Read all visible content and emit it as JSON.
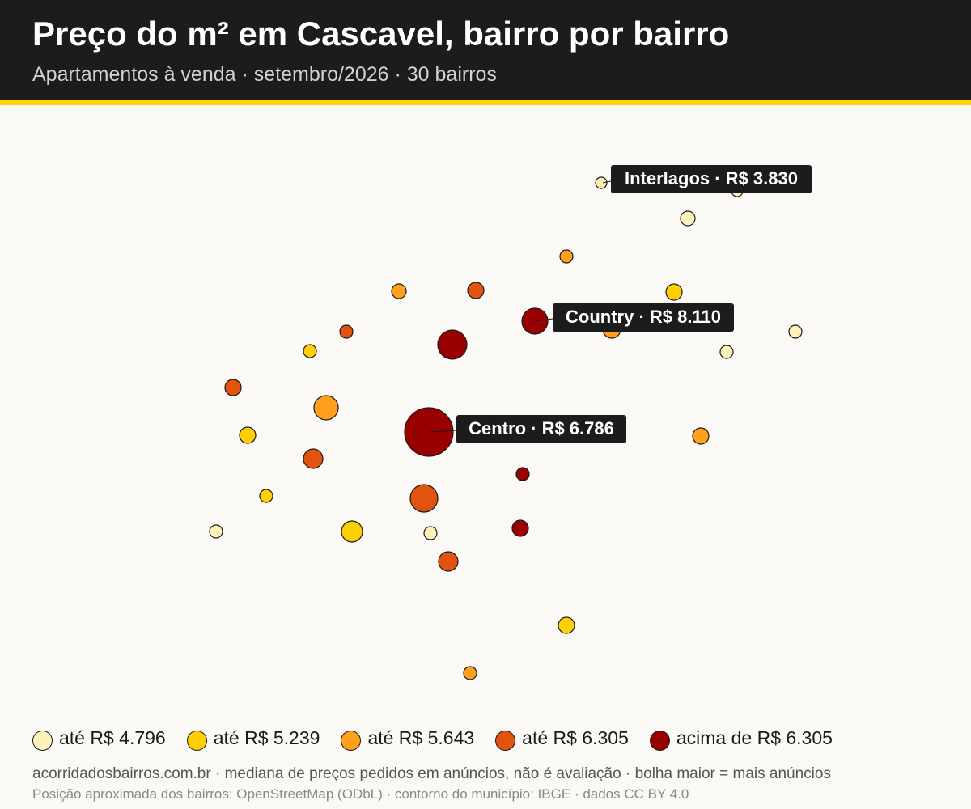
{
  "header": {
    "title": "Preço do m² em Cascavel, bairro por bairro",
    "subtitle": "Apartamentos à venda · setembro/2026 · 30 bairros"
  },
  "colors": {
    "header_bg": "#1c1c1c",
    "accent": "#ffd400",
    "background": "#faf9f6",
    "label_bg": "#1c1c1c",
    "label_text": "#ffffff"
  },
  "legend": [
    {
      "label": "até R$ 4.796",
      "color": "#fff2b8"
    },
    {
      "label": "até R$ 5.239",
      "color": "#ffd000"
    },
    {
      "label": "até R$ 5.643",
      "color": "#ff9f1c"
    },
    {
      "label": "acima de R$ 6.305",
      "color": "#990000",
      "hidden_order": 5
    },
    {
      "label": "até R$ 6.305",
      "color": "#e2530f"
    }
  ],
  "legend_order": [
    0,
    1,
    2,
    4,
    3
  ],
  "map": {
    "callouts": [
      {
        "name": "Interlagos",
        "text": "Interlagos · R$ 3.830"
      },
      {
        "name": "Country",
        "text": "Country · R$ 8.110"
      },
      {
        "name": "Centro",
        "text": "Centro · R$ 6.786"
      }
    ]
  },
  "footer": {
    "line1": "acorridadosbairros.com.br · mediana de preços pedidos em anúncios, não é avaliação · bolha maior = mais anúncios",
    "line2": "Posição aproximada dos bairros: OpenStreetMap (ODbL) · contorno do município: IBGE · dados CC BY 4.0"
  }
}
